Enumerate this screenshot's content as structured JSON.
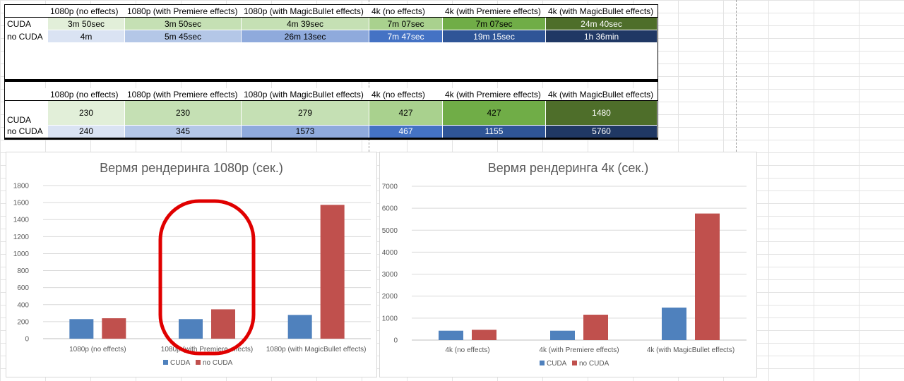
{
  "table_time": {
    "columns": [
      "1080p (no effects)",
      "1080p (with Premiere effects)",
      "1080p (with MagicBullet effects)",
      "4k (no effects)",
      "4k (with Premiere effects)",
      "4k (with MagicBullet effects)"
    ],
    "rows": [
      {
        "label": "CUDA",
        "values": [
          "3m 50sec",
          "3m 50sec",
          "4m 39sec",
          "7m 07sec",
          "7m 07sec",
          "24m 40sec"
        ]
      },
      {
        "label": "no CUDA",
        "values": [
          "4m",
          "5m 45sec",
          "26m 13sec",
          "7m 47sec",
          "19m 15sec",
          "1h 36min"
        ]
      }
    ]
  },
  "table_seconds": {
    "columns": [
      "1080p (no effects)",
      "1080p (with Premiere effects)",
      "1080p (with MagicBullet effects)",
      "4k (no effects)",
      "4k (with Premiere effects)",
      "4k (with MagicBullet effects)"
    ],
    "rows": [
      {
        "label": "CUDA",
        "values": [
          "230",
          "230",
          "279",
          "427",
          "427",
          "1480"
        ]
      },
      {
        "label": "no CUDA",
        "values": [
          "240",
          "345",
          "1573",
          "467",
          "1155",
          "5760"
        ]
      }
    ]
  },
  "colors": {
    "cuda_cells": [
      "#e2efd9",
      "#c5e0b4",
      "#c5e0b4",
      "#a9d18e",
      "#70ad47",
      "#4e6e2a"
    ],
    "nocuda_cells": [
      "#dae3f3",
      "#b4c7e7",
      "#8faadc",
      "#4472c4",
      "#2f5597",
      "#203864"
    ],
    "cuda_series": "#4f81bd",
    "nocuda_series": "#c0504d",
    "annotation": "#e00000"
  },
  "chart_data": [
    {
      "type": "bar",
      "title": "Вермя рендеринга 1080p (сек.)",
      "categories": [
        "1080p (no effects)",
        "1080p (with Premiere effects)",
        "1080p (with MagicBullet effects)"
      ],
      "series": [
        {
          "name": "CUDA",
          "values": [
            230,
            230,
            279
          ]
        },
        {
          "name": "no CUDA",
          "values": [
            240,
            345,
            1573
          ]
        }
      ],
      "ylim": [
        0,
        1800
      ],
      "yticks": [
        "0",
        "200",
        "400",
        "600",
        "800",
        "1000",
        "1200",
        "1400",
        "1600",
        "1800"
      ],
      "grid": true,
      "legend": "bottom",
      "annotation": "red oval around 1080p (with Premiere effects)"
    },
    {
      "type": "bar",
      "title": "Вермя рендеринга 4к (сек.)",
      "categories": [
        "4k (no effects)",
        "4k (with Premiere effects)",
        "4k (with MagicBullet effects)"
      ],
      "series": [
        {
          "name": "CUDA",
          "values": [
            427,
            427,
            1480
          ]
        },
        {
          "name": "no CUDA",
          "values": [
            467,
            1155,
            5760
          ]
        }
      ],
      "ylim": [
        0,
        7000
      ],
      "yticks": [
        "0",
        "1000",
        "2000",
        "3000",
        "4000",
        "5000",
        "6000",
        "7000"
      ],
      "grid": true,
      "legend": "bottom"
    }
  ]
}
